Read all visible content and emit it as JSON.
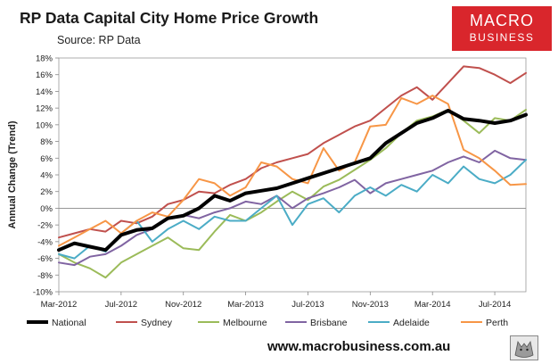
{
  "header": {
    "title": "RP Data Capital City Home Price Growth",
    "subtitle": "Source: RP Data"
  },
  "logo": {
    "line1": "MACRO",
    "line2": "BUSINESS",
    "color": "#d9262c"
  },
  "footer": {
    "url": "www.macrobusiness.com.au",
    "wolf_icon": "wolf-icon"
  },
  "chart_data": {
    "type": "line",
    "title": "RP Data Capital City Home Price Growth",
    "xlabel": "",
    "ylabel": "Annual Change (Trend)",
    "ylim": [
      -10,
      18
    ],
    "yticks": [
      -10,
      -8,
      -6,
      -4,
      -2,
      0,
      2,
      4,
      6,
      8,
      10,
      12,
      14,
      16,
      18
    ],
    "ytick_labels": [
      "-10%",
      "-8%",
      "-6%",
      "-4%",
      "-2%",
      "0%",
      "2%",
      "4%",
      "6%",
      "8%",
      "10%",
      "12%",
      "14%",
      "16%",
      "18%"
    ],
    "xlim": [
      0,
      30
    ],
    "xticks": [
      0,
      4,
      8,
      12,
      16,
      20,
      24,
      28
    ],
    "xtick_labels": [
      "Mar-2012",
      "Jul-2012",
      "Nov-2012",
      "Mar-2013",
      "Jul-2013",
      "Nov-2013",
      "Mar-2014",
      "Jul-2014"
    ],
    "grid": false,
    "legend_position": "bottom",
    "series": [
      {
        "name": "National",
        "color": "#000000",
        "width": 4,
        "x": [
          0,
          1,
          2,
          3,
          4,
          5,
          6,
          7,
          8,
          9,
          10,
          11,
          12,
          13,
          14,
          15,
          16,
          17,
          18,
          19,
          20,
          21,
          22,
          23,
          24,
          25,
          26,
          27,
          28,
          29,
          30
        ],
        "values": [
          -5.0,
          -4.2,
          -4.6,
          -5.0,
          -3.2,
          -2.6,
          -2.4,
          -1.2,
          -0.9,
          0.0,
          1.5,
          0.9,
          1.8,
          2.1,
          2.4,
          3.0,
          3.6,
          4.2,
          4.8,
          5.4,
          6.0,
          7.8,
          9.0,
          10.2,
          10.8,
          11.7,
          10.7,
          10.5,
          10.2,
          10.5,
          11.2
        ]
      },
      {
        "name": "Sydney",
        "color": "#c0504d",
        "width": 2,
        "x": [
          0,
          1,
          2,
          3,
          4,
          5,
          6,
          7,
          8,
          9,
          10,
          11,
          12,
          13,
          14,
          15,
          16,
          17,
          18,
          19,
          20,
          21,
          22,
          23,
          24,
          25,
          26,
          27,
          28,
          29,
          30
        ],
        "values": [
          -3.5,
          -3.0,
          -2.5,
          -2.8,
          -1.5,
          -1.8,
          -1.0,
          0.5,
          1.0,
          2.0,
          1.8,
          2.8,
          3.5,
          4.8,
          5.5,
          6.0,
          6.5,
          7.8,
          8.8,
          9.8,
          10.5,
          12.0,
          13.5,
          14.5,
          13.0,
          15.0,
          17.0,
          16.8,
          16.0,
          15.0,
          16.2
        ]
      },
      {
        "name": "Melbourne",
        "color": "#9bbb59",
        "width": 2,
        "x": [
          0,
          1,
          2,
          3,
          4,
          5,
          6,
          7,
          8,
          9,
          10,
          11,
          12,
          13,
          14,
          15,
          16,
          17,
          18,
          19,
          20,
          21,
          22,
          23,
          24,
          25,
          26,
          27,
          28,
          29,
          30
        ],
        "values": [
          -5.5,
          -6.5,
          -7.2,
          -8.3,
          -6.5,
          -5.5,
          -4.5,
          -3.5,
          -4.8,
          -5.0,
          -2.8,
          -0.8,
          -1.5,
          -0.5,
          0.8,
          2.0,
          1.0,
          2.6,
          3.4,
          4.6,
          5.8,
          7.2,
          9.0,
          10.5,
          11.0,
          11.8,
          10.5,
          9.0,
          10.8,
          10.5,
          11.8
        ]
      },
      {
        "name": "Brisbane",
        "color": "#8064a2",
        "width": 2,
        "x": [
          0,
          1,
          2,
          3,
          4,
          5,
          6,
          7,
          8,
          9,
          10,
          11,
          12,
          13,
          14,
          15,
          16,
          17,
          18,
          19,
          20,
          21,
          22,
          23,
          24,
          25,
          26,
          27,
          28,
          29,
          30
        ],
        "values": [
          -6.5,
          -6.8,
          -5.8,
          -5.5,
          -4.5,
          -3.2,
          -2.5,
          -1.2,
          -0.8,
          -1.2,
          -0.5,
          0.0,
          0.8,
          0.5,
          1.5,
          0.0,
          1.2,
          1.8,
          2.5,
          3.4,
          1.8,
          3.0,
          3.5,
          4.0,
          4.5,
          5.5,
          6.2,
          5.5,
          6.9,
          6.0,
          5.8
        ]
      },
      {
        "name": "Adelaide",
        "color": "#4bacc6",
        "width": 2,
        "x": [
          0,
          1,
          2,
          3,
          4,
          5,
          6,
          7,
          8,
          9,
          10,
          11,
          12,
          13,
          14,
          15,
          16,
          17,
          18,
          19,
          20,
          21,
          22,
          23,
          24,
          25,
          26,
          27,
          28,
          29,
          30
        ],
        "values": [
          -5.5,
          -6.0,
          -4.5,
          -5.2,
          -3.0,
          -1.5,
          -4.0,
          -2.5,
          -1.5,
          -2.5,
          -1.0,
          -1.5,
          -1.5,
          0.0,
          1.5,
          -2.0,
          0.5,
          1.2,
          -0.5,
          1.5,
          2.5,
          1.5,
          2.8,
          2.0,
          4.0,
          3.0,
          5.0,
          3.5,
          3.0,
          4.0,
          5.8
        ]
      },
      {
        "name": "Perth",
        "color": "#f79646",
        "width": 2,
        "x": [
          0,
          1,
          2,
          3,
          4,
          5,
          6,
          7,
          8,
          9,
          10,
          11,
          12,
          13,
          14,
          15,
          16,
          17,
          18,
          19,
          20,
          21,
          22,
          23,
          24,
          25,
          26,
          27,
          28,
          29,
          30
        ],
        "values": [
          -4.5,
          -3.5,
          -2.5,
          -1.5,
          -3.0,
          -1.5,
          -0.5,
          -1.0,
          1.0,
          3.5,
          3.0,
          1.5,
          2.5,
          5.5,
          5.0,
          3.5,
          3.0,
          7.2,
          4.5,
          5.5,
          9.8,
          10.0,
          13.2,
          12.5,
          13.5,
          12.5,
          7.0,
          6.0,
          4.5,
          2.8,
          2.9
        ]
      }
    ]
  }
}
